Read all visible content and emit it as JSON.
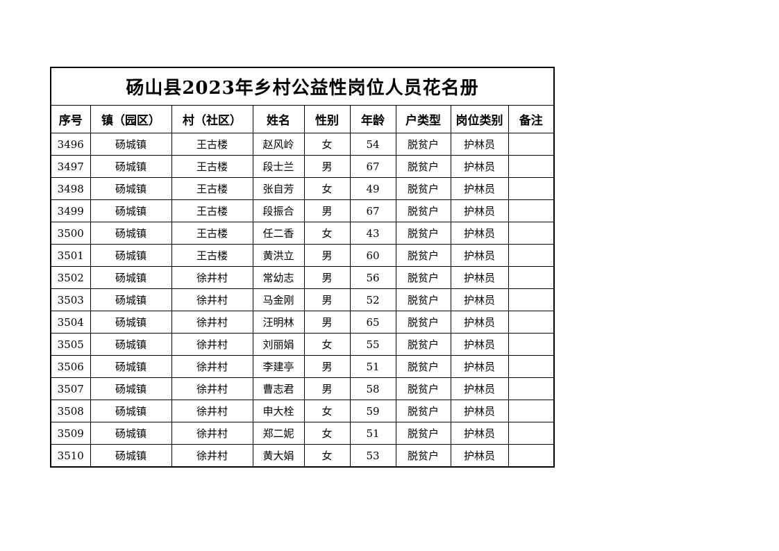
{
  "title": "砀山县2023年乡村公益性岗位人员花名册",
  "headers": [
    "序号",
    "镇（园区）",
    "村（社区）",
    "姓名",
    "性别",
    "年龄",
    "户类型",
    "岗位类别",
    "备注"
  ],
  "rows": [
    [
      "3496",
      "砀城镇",
      "王古楼",
      "赵风岭",
      "女",
      "54",
      "脱贫户",
      "护林员",
      ""
    ],
    [
      "3497",
      "砀城镇",
      "王古楼",
      "段士兰",
      "男",
      "67",
      "脱贫户",
      "护林员",
      ""
    ],
    [
      "3498",
      "砀城镇",
      "王古楼",
      "张自芳",
      "女",
      "49",
      "脱贫户",
      "护林员",
      ""
    ],
    [
      "3499",
      "砀城镇",
      "王古楼",
      "段振合",
      "男",
      "67",
      "脱贫户",
      "护林员",
      ""
    ],
    [
      "3500",
      "砀城镇",
      "王古楼",
      "任二香",
      "女",
      "43",
      "脱贫户",
      "护林员",
      ""
    ],
    [
      "3501",
      "砀城镇",
      "王古楼",
      "黄洪立",
      "男",
      "60",
      "脱贫户",
      "护林员",
      ""
    ],
    [
      "3502",
      "砀城镇",
      "徐井村",
      "常幼志",
      "男",
      "56",
      "脱贫户",
      "护林员",
      ""
    ],
    [
      "3503",
      "砀城镇",
      "徐井村",
      "马金刚",
      "男",
      "52",
      "脱贫户",
      "护林员",
      ""
    ],
    [
      "3504",
      "砀城镇",
      "徐井村",
      "汪明林",
      "男",
      "65",
      "脱贫户",
      "护林员",
      ""
    ],
    [
      "3505",
      "砀城镇",
      "徐井村",
      "刘丽娟",
      "女",
      "55",
      "脱贫户",
      "护林员",
      ""
    ],
    [
      "3506",
      "砀城镇",
      "徐井村",
      "李建亭",
      "男",
      "51",
      "脱贫户",
      "护林员",
      ""
    ],
    [
      "3507",
      "砀城镇",
      "徐井村",
      "曹志君",
      "男",
      "58",
      "脱贫户",
      "护林员",
      ""
    ],
    [
      "3508",
      "砀城镇",
      "徐井村",
      "申大栓",
      "女",
      "59",
      "脱贫户",
      "护林员",
      ""
    ],
    [
      "3509",
      "砀城镇",
      "徐井村",
      "郑二妮",
      "女",
      "51",
      "脱贫户",
      "护林员",
      ""
    ],
    [
      "3510",
      "砀城镇",
      "徐井村",
      "黄大娟",
      "女",
      "53",
      "脱贫户",
      "护林员",
      ""
    ]
  ]
}
